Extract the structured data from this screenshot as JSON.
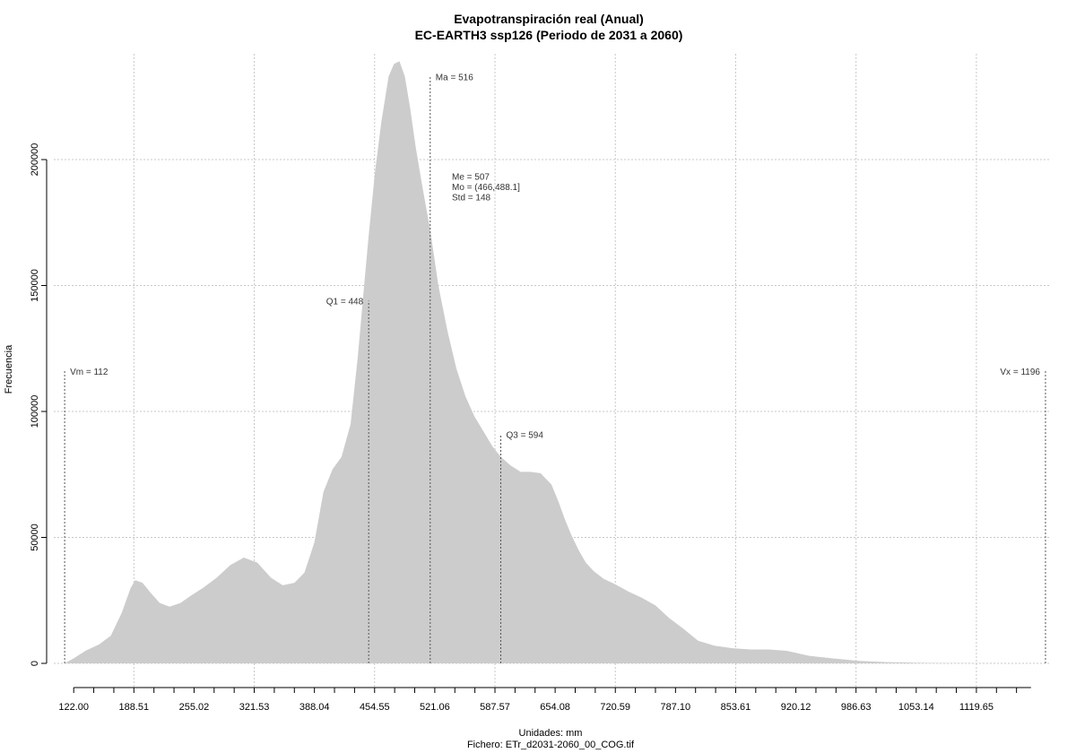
{
  "chart_data": {
    "type": "area",
    "title": "Evapotranspiración real (Anual)",
    "subtitle": "EC-EARTH3 ssp126 (Periodo de 2031 a 2060)",
    "xlabel": "Unidades: mm",
    "xlabel2": "Fichero: ETr_d2031-2060_00_COG.tif",
    "ylabel": "Frecuencia",
    "xlim": [
      100,
      1200
    ],
    "ylim": [
      0,
      242000
    ],
    "grid": true,
    "fill_color": "#cccccc",
    "x_ticks": [
      122.0,
      188.51,
      255.02,
      321.53,
      388.04,
      454.55,
      521.06,
      587.57,
      654.08,
      720.59,
      787.1,
      853.61,
      920.12,
      986.63,
      1053.14,
      1119.65
    ],
    "x_tick_labels": [
      "122.00",
      "188.51",
      "255.02",
      "321.53",
      "388.04",
      "454.55",
      "521.06",
      "587.57",
      "654.08",
      "720.59",
      "787.10",
      "853.61",
      "920.12",
      "986.63",
      "1053.14",
      "1119.65"
    ],
    "y_ticks": [
      0,
      50000,
      100000,
      150000,
      200000
    ],
    "y_tick_labels": [
      "0",
      "50000",
      "100000",
      "150000",
      "200000"
    ],
    "x_grid": [
      188.51,
      321.53,
      454.55,
      587.57,
      720.59,
      853.61,
      986.63,
      1119.65
    ],
    "series": [
      {
        "x": [
          112,
          122,
          135,
          150,
          163,
          175,
          185,
          190,
          198,
          207,
          217,
          228,
          240,
          252,
          265,
          280,
          295,
          310,
          325,
          340,
          353,
          366,
          377,
          388,
          398,
          408,
          418,
          428,
          436,
          443,
          448,
          455,
          462,
          470,
          476,
          482,
          488,
          494,
          500,
          507,
          516,
          525,
          535,
          545,
          555,
          565,
          575,
          585,
          594,
          605,
          616,
          627,
          638,
          650,
          658,
          665,
          672,
          680,
          688,
          697,
          708,
          720,
          735,
          750,
          765,
          780,
          795,
          812,
          830,
          850,
          870,
          890,
          910,
          935,
          960,
          990,
          1020,
          1050,
          1080,
          1110,
          1140,
          1170,
          1196
        ],
        "y": [
          0,
          2000,
          5000,
          7500,
          11000,
          20000,
          30000,
          33000,
          32000,
          28000,
          24000,
          22500,
          24000,
          27000,
          30000,
          34000,
          39000,
          42000,
          40000,
          34000,
          31000,
          32000,
          36000,
          48000,
          68000,
          77000,
          82000,
          95000,
          122000,
          150000,
          170000,
          195000,
          215000,
          233000,
          238000,
          239000,
          233000,
          220000,
          205000,
          190000,
          172000,
          150000,
          132000,
          117000,
          106000,
          98000,
          92000,
          86000,
          82000,
          78500,
          76000,
          76000,
          75500,
          71000,
          64000,
          57000,
          51000,
          45000,
          40000,
          36500,
          33500,
          31500,
          28500,
          26000,
          23000,
          18000,
          14000,
          9000,
          7000,
          6000,
          5500,
          5500,
          5000,
          3000,
          2000,
          1000,
          500,
          300,
          150,
          80,
          30,
          10,
          0
        ]
      }
    ],
    "vlines": [
      {
        "x": 112,
        "y": 116000,
        "label": "Vm = 112",
        "label_side": "right"
      },
      {
        "x": 448,
        "y": 144000,
        "label": "Q1 = 448",
        "label_side": "left"
      },
      {
        "x": 516,
        "y": 233000,
        "label": "Ma = 516",
        "label_side": "right"
      },
      {
        "x": 594,
        "y": 91000,
        "label": "Q3 = 594",
        "label_side": "right"
      },
      {
        "x": 1196,
        "y": 116000,
        "label": "Vx = 1196",
        "label_side": "left"
      }
    ],
    "stats_text": [
      "Me = 507",
      "Mo = (466,488.1]",
      "Std = 148"
    ],
    "stats_anchor": {
      "x": 540,
      "y": 192000
    }
  }
}
